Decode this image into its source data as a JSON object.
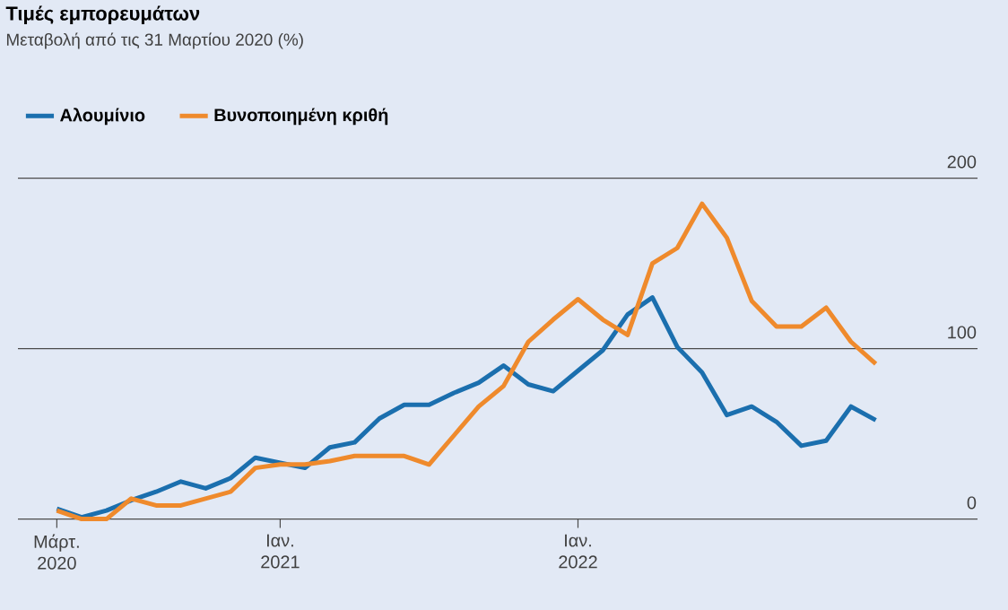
{
  "chart_data": {
    "type": "line",
    "title": "Τιμές εμπορευμάτων",
    "subtitle": "Μεταβολή από τις 31 Μαρτίου 2020 (%)",
    "x": [
      "2020-03-31",
      "2020-05",
      "2020-06",
      "2020-07",
      "2020-08",
      "2020-09",
      "2020-10",
      "2020-11",
      "2020-12",
      "2021-01",
      "2021-02",
      "2021-03",
      "2021-04",
      "2021-05",
      "2021-06",
      "2021-07",
      "2021-08",
      "2021-09",
      "2021-10",
      "2021-11",
      "2021-12",
      "2022-01",
      "2022-02",
      "2022-03",
      "2022-04",
      "2022-05",
      "2022-06",
      "2022-07",
      "2022-08",
      "2022-09",
      "2022-10",
      "2022-11",
      "2022-12",
      "2023-01"
    ],
    "series": [
      {
        "name": "Αλουμίνιο",
        "color": "#1b6fae",
        "values": [
          6,
          1,
          5,
          11,
          16,
          22,
          18,
          24,
          36,
          33,
          30,
          42,
          45,
          59,
          67,
          67,
          74,
          80,
          90,
          79,
          75,
          87,
          99,
          120,
          130,
          101,
          86,
          61,
          66,
          57,
          43,
          46,
          66,
          58
        ]
      },
      {
        "name": "Βυνοποιημένη κριθή",
        "color": "#ef8a2c",
        "values": [
          5,
          0,
          0,
          12,
          8,
          8,
          12,
          16,
          30,
          32,
          32,
          34,
          37,
          37,
          37,
          32,
          49,
          66,
          78,
          104,
          117,
          129,
          117,
          108,
          150,
          159,
          185,
          165,
          128,
          113,
          113,
          124,
          104,
          91
        ]
      }
    ],
    "xlim": [
      "2020-02-14",
      "2023-05-04"
    ],
    "xticks": [
      {
        "value": "2020-03-31",
        "label": "Μάρτ. 2020"
      },
      {
        "value": "2021-01",
        "label": "Ιαν. 2021"
      },
      {
        "value": "2022-01",
        "label": "Ιαν. 2022"
      }
    ],
    "ylim": [
      0,
      200
    ],
    "yticks": [
      0,
      100,
      200
    ],
    "grid": "y",
    "legend": "top left",
    "marker": "none",
    "line_style": "solid"
  }
}
